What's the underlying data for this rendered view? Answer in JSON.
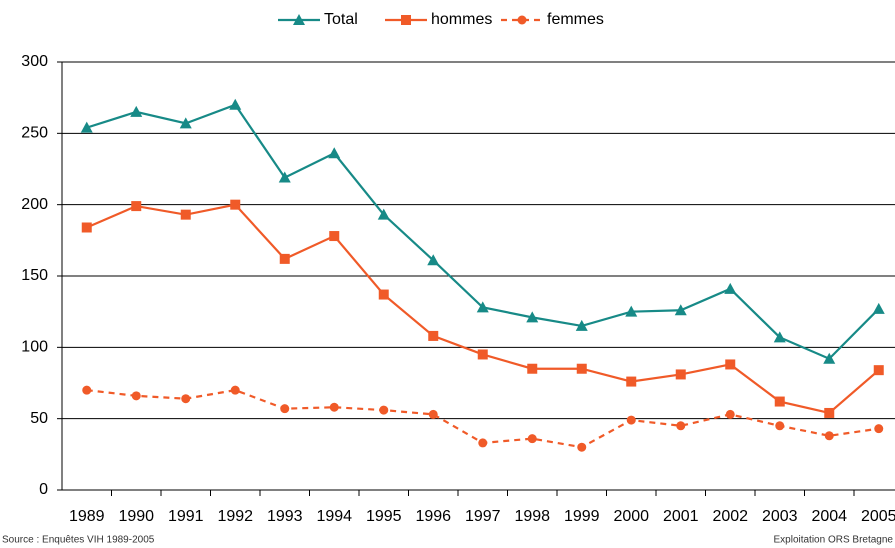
{
  "chart_data": {
    "type": "line",
    "categories": [
      "1989",
      "1990",
      "1991",
      "1992",
      "1993",
      "1994",
      "1995",
      "1996",
      "1997",
      "1998",
      "1999",
      "2000",
      "2001",
      "2002",
      "2003",
      "2004",
      "2005"
    ],
    "series": [
      {
        "name": "Total",
        "color": "#178a87",
        "marker": "triangle",
        "dashed": false,
        "values": [
          254,
          265,
          257,
          270,
          219,
          236,
          193,
          161,
          128,
          121,
          115,
          125,
          126,
          141,
          107,
          92,
          127
        ]
      },
      {
        "name": "hommes",
        "color": "#f05a28",
        "marker": "square",
        "dashed": false,
        "values": [
          184,
          199,
          193,
          200,
          162,
          178,
          137,
          108,
          95,
          85,
          85,
          76,
          81,
          88,
          62,
          54,
          84
        ]
      },
      {
        "name": "femmes",
        "color": "#f05a28",
        "marker": "circle",
        "dashed": true,
        "values": [
          70,
          66,
          64,
          70,
          57,
          58,
          56,
          53,
          33,
          36,
          30,
          49,
          45,
          53,
          45,
          38,
          43
        ]
      }
    ],
    "ylim": [
      0,
      300
    ],
    "yticks": [
      0,
      50,
      100,
      150,
      200,
      250,
      300
    ],
    "grid": true,
    "legend": "top",
    "source": "Source : Enquêtes VIH 1989-2005",
    "credit": "Exploitation ORS Bretagne"
  }
}
